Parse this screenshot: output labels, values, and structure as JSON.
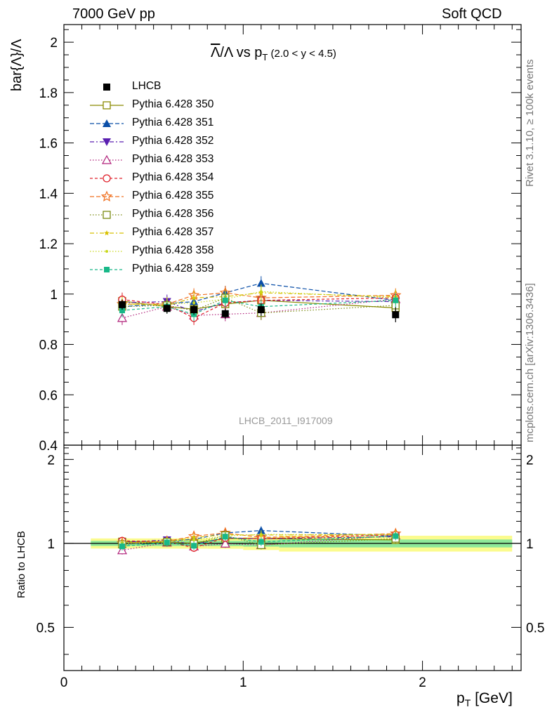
{
  "header": {
    "left": "7000 GeV pp",
    "right": "Soft QCD"
  },
  "side_text": {
    "rivet": "Rivet 3.1.10, ≥ 100k events",
    "mcplots": "mcplots.cern.ch [arXiv:1306.3436]"
  },
  "watermark": "LHCB_2011_I917009",
  "chart_data": {
    "type": "scatter",
    "title": {
      "bar": "Λ",
      "rest": "/Λ vs p",
      "sub": "T",
      "range": " (2.0 < y < 4.5)"
    },
    "xlabel": {
      "main": "p",
      "sub": "T",
      "unit": " [GeV]"
    },
    "ylabel": "bar{Λ}/Λ",
    "ratio_ylabel": "Ratio to LHCB",
    "xlim": [
      0,
      2.55
    ],
    "ylim": [
      0.4,
      2.07
    ],
    "ratio_ylim": [
      0.35,
      2.25
    ],
    "x_ticks": [
      0,
      1,
      2
    ],
    "x_tick_labels": [
      "0",
      "1",
      "2"
    ],
    "y_ticks": [
      0.4,
      0.6,
      0.8,
      1,
      1.2,
      1.4,
      1.6,
      1.8,
      2
    ],
    "y_tick_labels": [
      "0.4",
      "0.6",
      "0.8",
      "1",
      "1.2",
      "1.4",
      "1.6",
      "1.8",
      "2"
    ],
    "ratio_ticks": [
      0.5,
      1,
      2
    ],
    "ratio_tick_labels": [
      "0.5",
      "1",
      "2"
    ],
    "x": [
      0.325,
      0.575,
      0.725,
      0.9,
      1.1,
      1.85
    ],
    "x_bins": [
      [
        0.15,
        0.5
      ],
      [
        0.5,
        0.65
      ],
      [
        0.65,
        0.8
      ],
      [
        0.8,
        1.0
      ],
      [
        1.0,
        1.2
      ],
      [
        1.2,
        2.5
      ]
    ],
    "data": {
      "name": "LHCB",
      "values": [
        0.958,
        0.943,
        0.938,
        0.922,
        0.938,
        0.918
      ],
      "errors": [
        0.02,
        0.02,
        0.02,
        0.02,
        0.025,
        0.03
      ]
    },
    "series": [
      {
        "name": "Pythia 6.428 350",
        "color": "#8a8a00",
        "marker": "open-square",
        "dash": "",
        "values": [
          0.972,
          0.95,
          0.94,
          0.96,
          0.975,
          0.945
        ]
      },
      {
        "name": "Pythia 6.428 351",
        "color": "#0b4fa8",
        "marker": "filled-triangle-up",
        "dash": "6,3",
        "values": [
          0.95,
          0.962,
          0.97,
          1.005,
          1.043,
          0.975
        ]
      },
      {
        "name": "Pythia 6.428 352",
        "color": "#5a1fb0",
        "marker": "filled-triangle-down",
        "dash": "6,3,2,3",
        "values": [
          0.966,
          0.97,
          0.93,
          0.965,
          0.975,
          0.97
        ]
      },
      {
        "name": "Pythia 6.428 353",
        "color": "#b0207a",
        "marker": "open-triangle-up",
        "dash": "1.5,2.5",
        "values": [
          0.905,
          0.95,
          0.915,
          0.92,
          0.925,
          0.98
        ]
      },
      {
        "name": "Pythia 6.428 354",
        "color": "#e0202a",
        "marker": "open-circle",
        "dash": "4,3",
        "values": [
          0.978,
          0.958,
          0.905,
          0.965,
          0.975,
          0.985
        ]
      },
      {
        "name": "Pythia 6.428 355",
        "color": "#f07020",
        "marker": "open-star",
        "dash": "6,3",
        "values": [
          0.96,
          0.96,
          0.995,
          1.005,
          0.985,
          0.995
        ]
      },
      {
        "name": "Pythia 6.428 356",
        "color": "#7a8a10",
        "marker": "open-square",
        "dash": "1.5,2.5",
        "values": [
          0.95,
          0.955,
          0.935,
          0.985,
          0.925,
          0.955
        ]
      },
      {
        "name": "Pythia 6.428 357",
        "color": "#d8c000",
        "marker": "small-star",
        "dash": "6,3,2,3",
        "values": [
          0.962,
          0.955,
          0.985,
          0.99,
          1.005,
          0.99
        ]
      },
      {
        "name": "Pythia 6.428 358",
        "color": "#c8d818",
        "marker": "small-dot",
        "dash": "1.5,2.5",
        "values": [
          0.958,
          0.96,
          0.965,
          0.98,
          1.01,
          0.985
        ]
      },
      {
        "name": "Pythia 6.428 359",
        "color": "#18b888",
        "marker": "filled-square",
        "dash": "4,3",
        "values": [
          0.935,
          0.95,
          0.92,
          0.975,
          0.95,
          0.975
        ]
      }
    ]
  }
}
